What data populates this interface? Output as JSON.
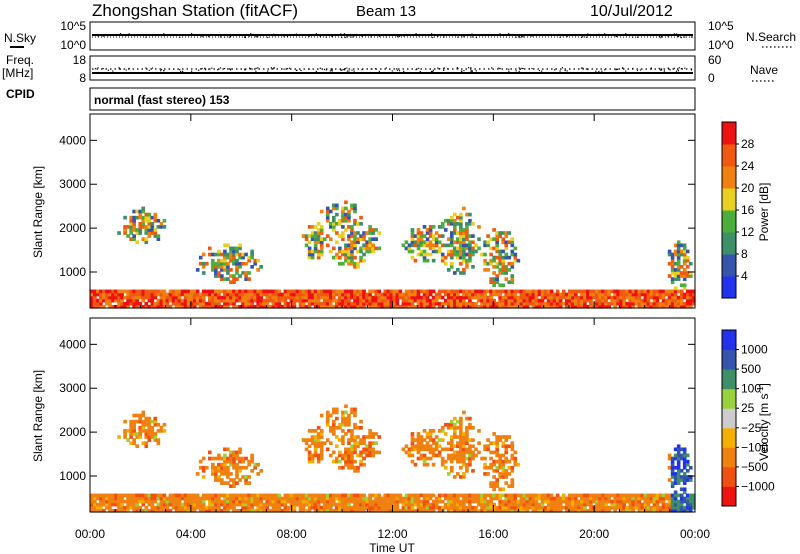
{
  "header": {
    "station": "Zhongshan Station (fitACF)",
    "beam": "Beam 13",
    "date": "10/Jul/2012"
  },
  "left_labels": {
    "nsky": "N.Sky",
    "freq": "Freq.",
    "freq_unit": "[MHz]",
    "cpid": "CPID"
  },
  "right_labels": {
    "nsearch": "N.Search",
    "nave": "Nave"
  },
  "strip_ticks": {
    "noise_left": [
      "10^5",
      "10^0"
    ],
    "noise_right": [
      "10^5",
      "10^0"
    ],
    "freq_left": [
      "18",
      "8"
    ],
    "nave_right": [
      "60",
      "0"
    ]
  },
  "cpid_text": "normal (fast stereo) 153",
  "colors": {
    "power_scale": [
      "#2233ee",
      "#3355aa",
      "#3e8e68",
      "#4caf3c",
      "#e8d020",
      "#f08010",
      "#f05a10",
      "#ee1111"
    ],
    "velocity_scale": [
      "#ee1111",
      "#f05010",
      "#f08010",
      "#f3b000",
      "#cccccc",
      "#9ad23c",
      "#3e8e68",
      "#3355aa",
      "#2233ee"
    ]
  },
  "chart_data": [
    {
      "type": "heatmap",
      "name": "power",
      "ylabel": "Slant Range [km]",
      "xlabel": "",
      "x_ticks": [
        "00:00",
        "04:00",
        "08:00",
        "12:00",
        "16:00",
        "20:00",
        "00:00"
      ],
      "xlim": [
        0,
        24
      ],
      "ylim": [
        180,
        4600
      ],
      "y_ticks": [
        1000,
        2000,
        3000,
        4000
      ],
      "colorbar": {
        "label": "Power [dB]",
        "ticks": [
          "28",
          "24",
          "20",
          "16",
          "12",
          "8",
          "4"
        ],
        "range": [
          0,
          32
        ]
      }
    },
    {
      "type": "heatmap",
      "name": "velocity",
      "ylabel": "Slant Range [km]",
      "xlabel": "Time UT",
      "x_ticks": [
        "00:00",
        "04:00",
        "08:00",
        "12:00",
        "16:00",
        "20:00",
        "00:00"
      ],
      "xlim": [
        0,
        24
      ],
      "ylim": [
        180,
        4600
      ],
      "y_ticks": [
        1000,
        2000,
        3000,
        4000
      ],
      "colorbar": {
        "label": "Velocity [m s",
        "label_sup": "-1",
        "label_end": "]",
        "ticks": [
          "1000",
          "500",
          "100",
          "25",
          "−25",
          "−100",
          "−500",
          "−1000"
        ]
      }
    }
  ]
}
